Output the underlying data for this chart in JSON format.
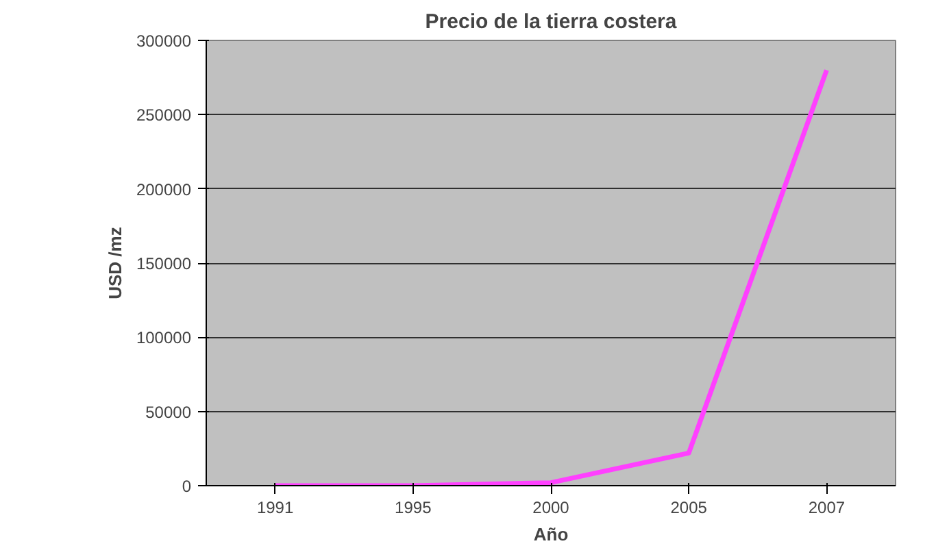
{
  "chart_data": {
    "type": "line",
    "title": "Precio de la tierra costera",
    "xlabel": "Año",
    "ylabel": "USD /mz",
    "categories": [
      "1991",
      "1995",
      "2000",
      "2005",
      "2007"
    ],
    "series": [
      {
        "color": "#ff40ff",
        "values": [
          0,
          0,
          2000,
          22000,
          280000
        ]
      }
    ],
    "ylim": [
      0,
      300000
    ],
    "yticks": [
      0,
      50000,
      100000,
      150000,
      200000,
      250000,
      300000
    ],
    "grid": "y",
    "marker": "none",
    "line_style": "solid"
  }
}
